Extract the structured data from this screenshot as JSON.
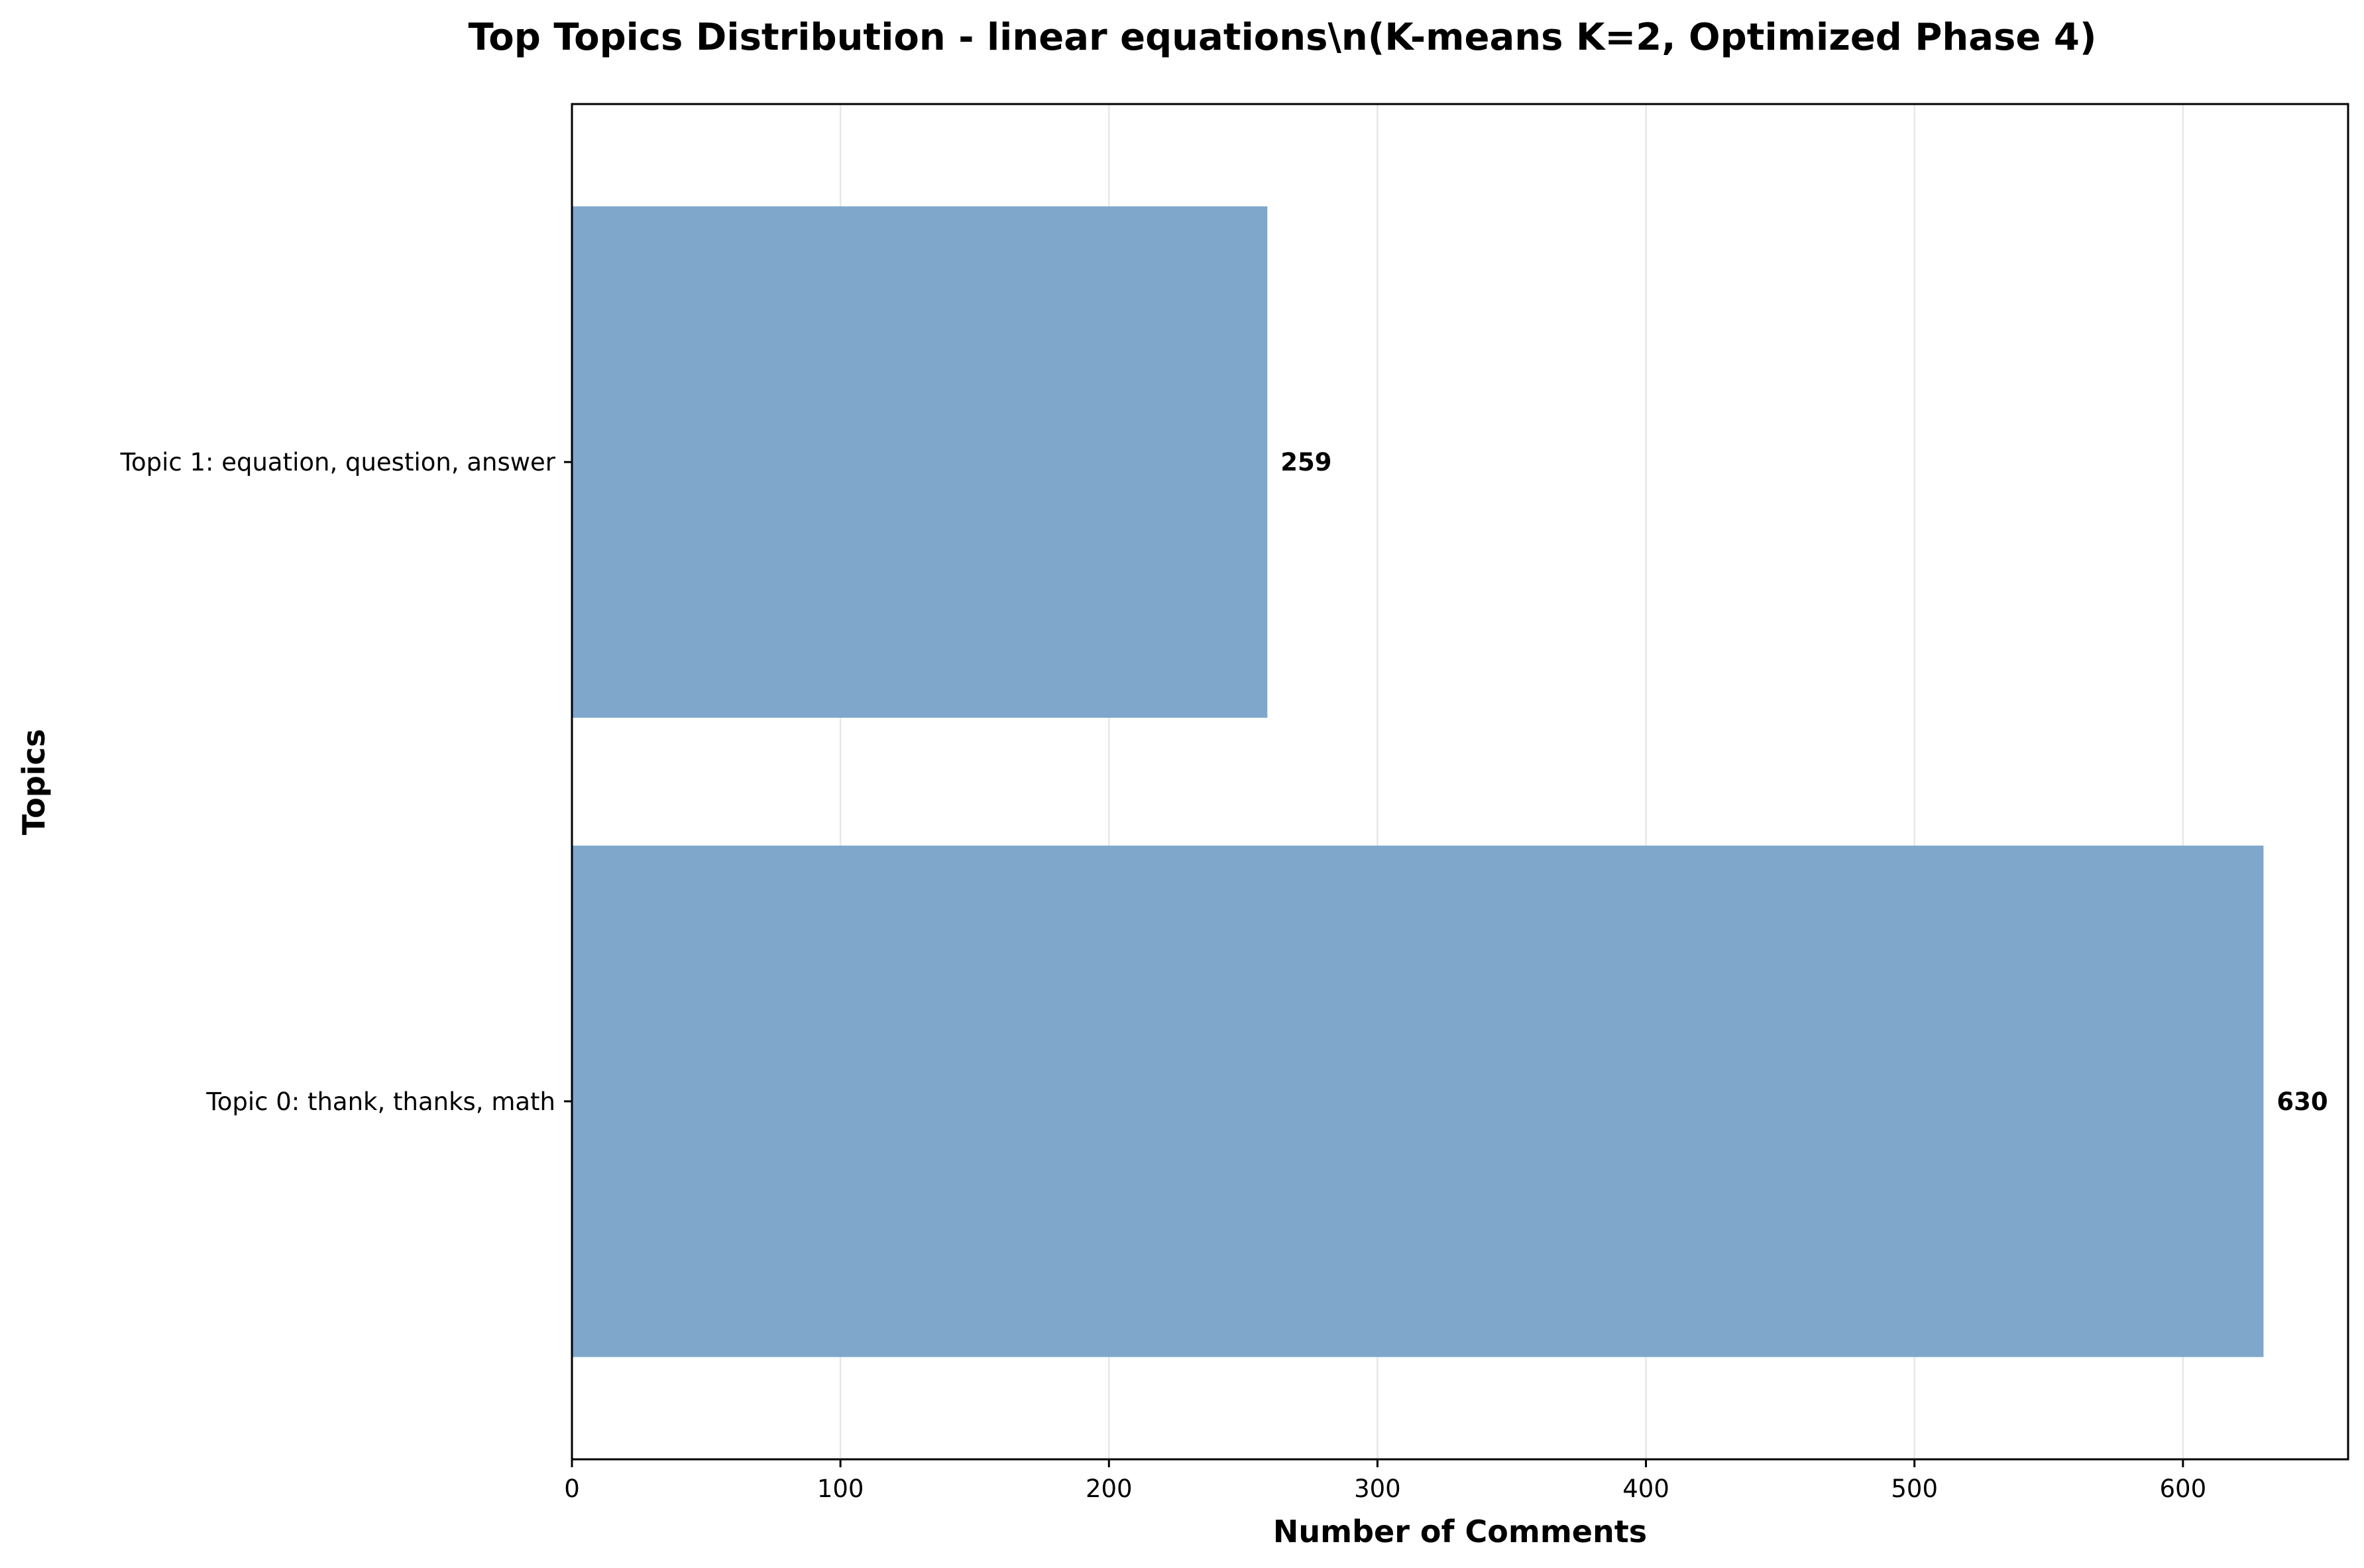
{
  "chart_data": {
    "type": "bar",
    "orientation": "horizontal",
    "title": "Top Topics Distribution - linear equations\\n(K-means K=2, Optimized Phase 4)",
    "xlabel": "Number of Comments",
    "ylabel": "Topics",
    "categories": [
      "Topic 1: equation, question, answer",
      "Topic 0: thank, thanks, math"
    ],
    "values": [
      259,
      630
    ],
    "value_labels": [
      "259",
      "630"
    ],
    "xlim": [
      0,
      661.5
    ],
    "xticks": [
      0,
      100,
      200,
      300,
      400,
      500,
      600
    ],
    "xtick_labels": [
      "0",
      "100",
      "200",
      "300",
      "400",
      "500",
      "600"
    ],
    "grid": "vertical",
    "bar_color": "#7ea7cb",
    "legend": "none"
  }
}
